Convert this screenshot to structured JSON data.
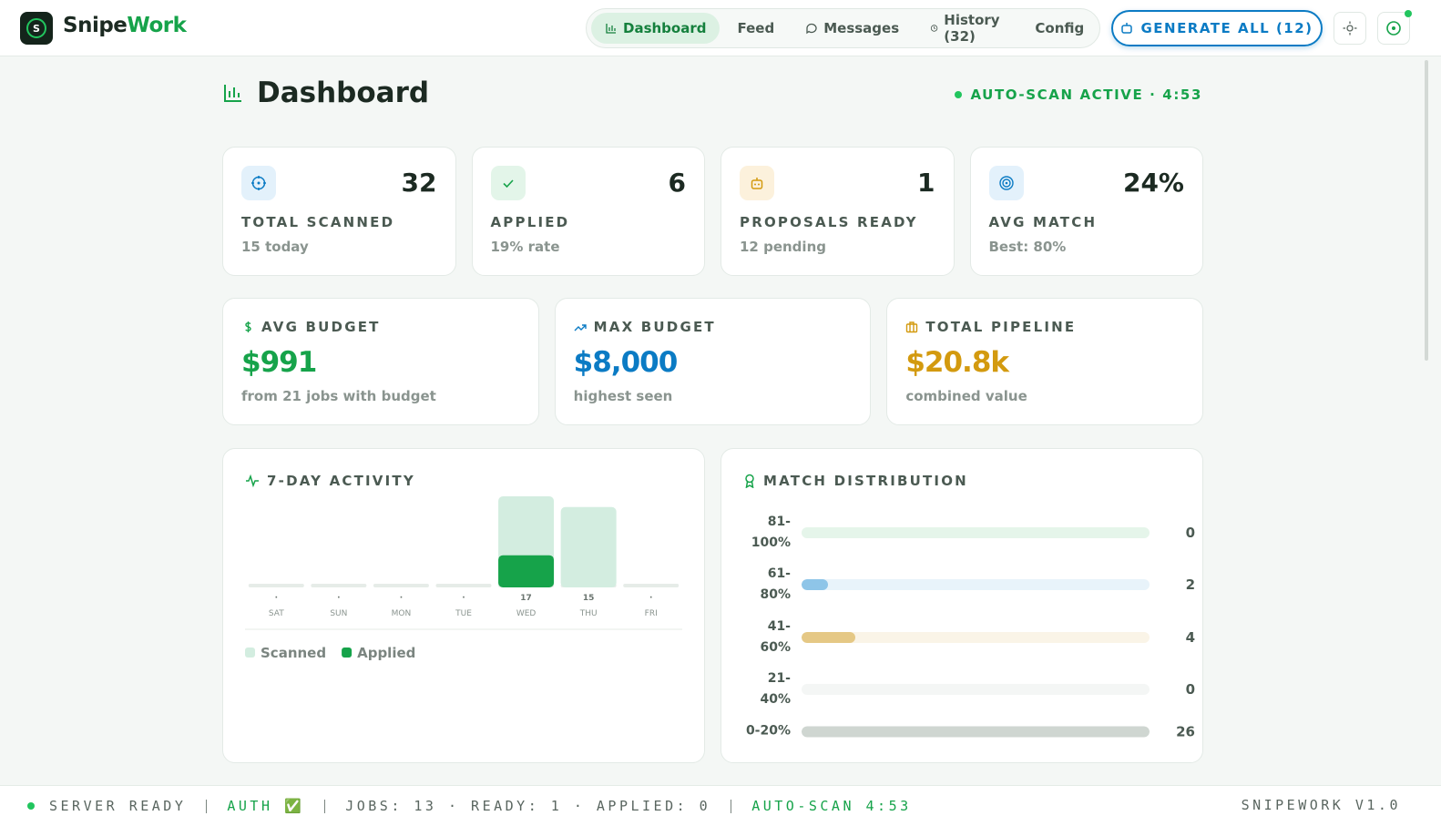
{
  "header": {
    "logo": "S",
    "brand_first": "Snipe",
    "brand_second": "Work",
    "nav": [
      "Dashboard",
      "Feed",
      "Messages",
      "History (32)",
      "Config"
    ],
    "action": "GENERATE ALL (12)"
  },
  "page": {
    "title": "Dashboard",
    "status": "AUTO-SCAN ACTIVE · 4:53"
  },
  "stats": [
    {
      "value": "32",
      "label": "TOTAL SCANNED",
      "sub": "15 today"
    },
    {
      "value": "6",
      "label": "APPLIED",
      "sub": "19% rate"
    },
    {
      "value": "1",
      "label": "PROPOSALS READY",
      "sub": "12 pending"
    },
    {
      "value": "24%",
      "label": "AVG MATCH",
      "sub": "Best: 80%"
    }
  ],
  "budgets": [
    {
      "label": "AVG BUDGET",
      "value": "$991",
      "sub": "from 21 jobs with budget",
      "color": "#16a34a"
    },
    {
      "label": "MAX BUDGET",
      "value": "$8,000",
      "sub": "highest seen",
      "color": "#0b7bc4"
    },
    {
      "label": "TOTAL PIPELINE",
      "value": "$20.8k",
      "sub": "combined value",
      "color": "#d39a0f"
    }
  ],
  "activity": {
    "type": "bar",
    "title": "7-DAY ACTIVITY",
    "categories": [
      "SAT",
      "SUN",
      "MON",
      "TUE",
      "WED",
      "THU",
      "FRI"
    ],
    "series": [
      {
        "name": "Scanned",
        "color": "#d3ede0",
        "values": [
          0,
          0,
          0,
          0,
          17,
          15,
          0
        ],
        "value_labels": [
          "·",
          "·",
          "·",
          "·",
          "17",
          "15",
          "·"
        ]
      },
      {
        "name": "Applied",
        "color": "#16a34a",
        "values": [
          0,
          0,
          0,
          0,
          6,
          0,
          0
        ]
      }
    ]
  },
  "distribution": {
    "type": "bar",
    "title": "MATCH DISTRIBUTION",
    "categories": [
      "81-100%",
      "61-80%",
      "41-60%",
      "21-40%",
      "0-20%"
    ],
    "values": [
      0,
      2,
      4,
      0,
      26
    ],
    "colors": [
      "#7fcf97",
      "#8ec5e8",
      "#e5c885",
      "#c9d0cc",
      "#cfd6d1"
    ]
  },
  "footer": {
    "items": [
      "SERVER READY",
      "AUTH ✅",
      "JOBS: 13 · READY: 1 · APPLIED: 0",
      "AUTO-SCAN 4:53"
    ],
    "version": "SNIPEWORK V1.0"
  }
}
